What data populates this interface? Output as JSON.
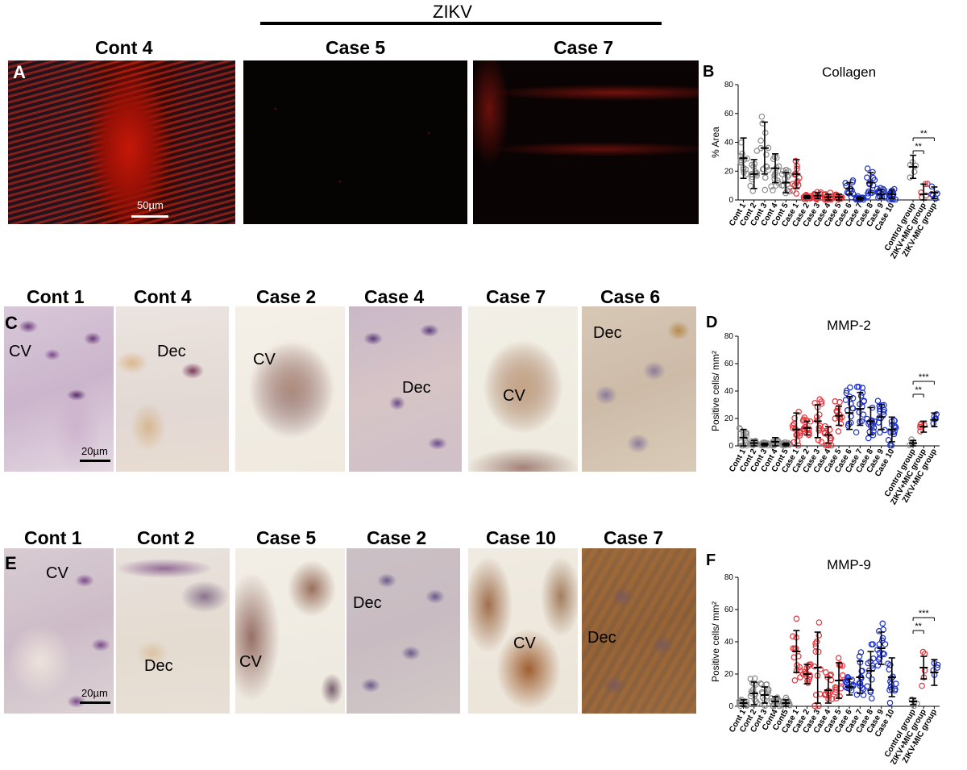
{
  "header": {
    "zikv": "ZIKV"
  },
  "row1": {
    "letter": "A",
    "titles": [
      "Cont 4",
      "Case 5",
      "Case 7"
    ],
    "scale": "50µm"
  },
  "row2": {
    "letter": "C",
    "titles": [
      "Cont 1",
      "Cont 4",
      "Case 2",
      "Case 4",
      "Case 7",
      "Case 6"
    ],
    "labels": [
      "CV",
      "Dec",
      "CV",
      "Dec",
      "CV",
      "Dec"
    ],
    "scale": "20µm"
  },
  "row3": {
    "letter": "E",
    "titles": [
      "Cont 1",
      "Cont 2",
      "Case 5",
      "Case 2",
      "Case 10",
      "Case 7"
    ],
    "labels": [
      "CV",
      "Dec",
      "CV",
      "Dec",
      "CV",
      "Dec"
    ],
    "scale": "20µm"
  },
  "colors": {
    "control": "#8c8c8c",
    "mic_pos": "#e8333a",
    "mic_neg": "#1c2fc4"
  },
  "chart_data": [
    {
      "panel": "B",
      "type": "scatter",
      "title": "Collagen",
      "ylabel": "% Area",
      "ylim": [
        0,
        80
      ],
      "yticks": [
        0,
        20,
        40,
        60,
        80
      ],
      "categories": [
        "Cont 1",
        "Cont 2",
        "Cont 3",
        "Cont 4",
        "Cont 5",
        "Case 1",
        "Case 2",
        "Case 3",
        "Case 4",
        "Case 5",
        "Case 6",
        "Case 7",
        "Case 8",
        "Case 9",
        "Case 10",
        "",
        "Control group",
        "ZIKV+MIC group",
        "ZIKV-MIC group"
      ],
      "means": [
        29,
        18,
        36,
        22,
        12,
        18,
        2,
        3,
        2,
        2,
        8,
        1,
        12,
        4,
        4,
        null,
        23,
        4,
        5
      ],
      "sd": [
        14,
        10,
        18,
        10,
        7,
        10,
        1,
        2,
        2,
        2,
        4,
        1,
        7,
        3,
        3,
        null,
        8,
        7,
        4
      ],
      "significance": [
        {
          "from": "Control group",
          "to": "ZIKV+MIC group",
          "label": "**"
        },
        {
          "from": "Control group",
          "to": "ZIKV-MIC group",
          "label": "**"
        }
      ]
    },
    {
      "panel": "D",
      "type": "scatter",
      "title": "MMP-2",
      "ylabel": "Positive cells/ mm²",
      "ylim": [
        0,
        80
      ],
      "yticks": [
        0,
        20,
        40,
        60,
        80
      ],
      "categories": [
        "Cont 1",
        "Cont 2",
        "Cont 3",
        "Cont 4",
        "Cont 5",
        "Case 1",
        "Case 2",
        "Case 3",
        "Case 4",
        "Case 5",
        "Case 6",
        "Case 7",
        "Case 8",
        "Case 9",
        "Case 10",
        "",
        "Control group",
        "ZIKV+MIC group",
        "ZIKV-MIC group"
      ],
      "means": [
        6,
        2,
        1,
        3,
        1,
        12,
        13,
        18,
        8,
        22,
        24,
        27,
        18,
        21,
        12,
        null,
        2,
        14,
        19
      ],
      "sd": [
        6,
        2,
        1,
        3,
        1,
        12,
        5,
        12,
        6,
        7,
        12,
        12,
        10,
        9,
        9,
        null,
        2,
        4,
        5
      ],
      "significance": [
        {
          "from": "Control group",
          "to": "ZIKV+MIC group",
          "label": "**"
        },
        {
          "from": "Control group",
          "to": "ZIKV-MIC group",
          "label": "***"
        }
      ]
    },
    {
      "panel": "F",
      "type": "scatter",
      "title": "MMP-9",
      "ylabel": "Positive cells/ mm²",
      "ylim": [
        0,
        80
      ],
      "yticks": [
        0,
        20,
        40,
        60,
        80
      ],
      "categories": [
        "Cont 1",
        "Cont 2",
        "Cont 3",
        "Cont4",
        "Cont5",
        "Case 1",
        "Case 2",
        "Case 3",
        "Case 4",
        "Case 5",
        "Case 6",
        "Case 7",
        "Case 8",
        "Case 9",
        "Case 10",
        "",
        "Control group",
        "ZIKV+MIC group",
        "ZIKV-MIC group"
      ],
      "means": [
        2,
        8,
        7,
        3,
        2,
        34,
        20,
        24,
        10,
        16,
        12,
        18,
        22,
        36,
        18,
        null,
        3,
        24,
        21
      ],
      "sd": [
        2,
        7,
        5,
        3,
        2,
        13,
        6,
        22,
        8,
        11,
        5,
        10,
        12,
        10,
        12,
        null,
        2,
        7,
        8
      ],
      "significance": [
        {
          "from": "Control group",
          "to": "ZIKV+MIC group",
          "label": "**"
        },
        {
          "from": "Control group",
          "to": "ZIKV-MIC group",
          "label": "***"
        }
      ]
    }
  ]
}
